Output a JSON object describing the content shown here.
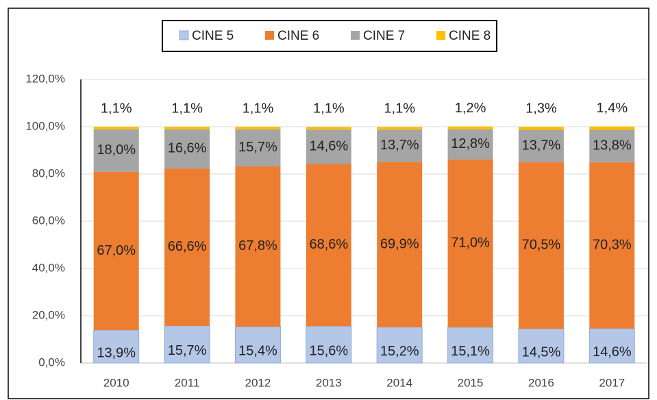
{
  "chart_data": {
    "type": "stacked_bar",
    "categories": [
      "2010",
      "2011",
      "2012",
      "2013",
      "2014",
      "2015",
      "2016",
      "2017"
    ],
    "series": [
      {
        "name": "CINE 5",
        "color": "#b4c7e7",
        "values": [
          13.9,
          15.7,
          15.4,
          15.6,
          15.2,
          15.1,
          14.5,
          14.6
        ],
        "value_labels": [
          "13,9%",
          "15,7%",
          "15,4%",
          "15,6%",
          "15,2%",
          "15,1%",
          "14,5%",
          "14,6%"
        ]
      },
      {
        "name": "CINE 6",
        "color": "#ed7d31",
        "values": [
          67.0,
          66.6,
          67.8,
          68.6,
          69.9,
          71.0,
          70.5,
          70.3
        ],
        "value_labels": [
          "67,0%",
          "66,6%",
          "67,8%",
          "68,6%",
          "69,9%",
          "71,0%",
          "70,5%",
          "70,3%"
        ]
      },
      {
        "name": "CINE 7",
        "color": "#a5a5a5",
        "values": [
          18.0,
          16.6,
          15.7,
          14.6,
          13.7,
          12.8,
          13.7,
          13.8
        ],
        "value_labels": [
          "18,0%",
          "16,6%",
          "15,7%",
          "14,6%",
          "13,7%",
          "12,8%",
          "13,7%",
          "13,8%"
        ]
      },
      {
        "name": "CINE 8",
        "color": "#ffc000",
        "values": [
          1.1,
          1.1,
          1.1,
          1.1,
          1.1,
          1.2,
          1.3,
          1.4
        ],
        "value_labels": [
          "1,1%",
          "1,1%",
          "1,1%",
          "1,1%",
          "1,1%",
          "1,2%",
          "1,3%",
          "1,4%"
        ]
      }
    ],
    "ylim": [
      0,
      120
    ],
    "yticks": [
      {
        "value": 0,
        "label": "0,0%"
      },
      {
        "value": 20,
        "label": "20,0%"
      },
      {
        "value": 40,
        "label": "40,0%"
      },
      {
        "value": 60,
        "label": "60,0%"
      },
      {
        "value": 80,
        "label": "80,0%"
      },
      {
        "value": 100,
        "label": "100,0%"
      },
      {
        "value": 120,
        "label": "120,0%"
      }
    ],
    "grid": true,
    "legend": "top"
  }
}
